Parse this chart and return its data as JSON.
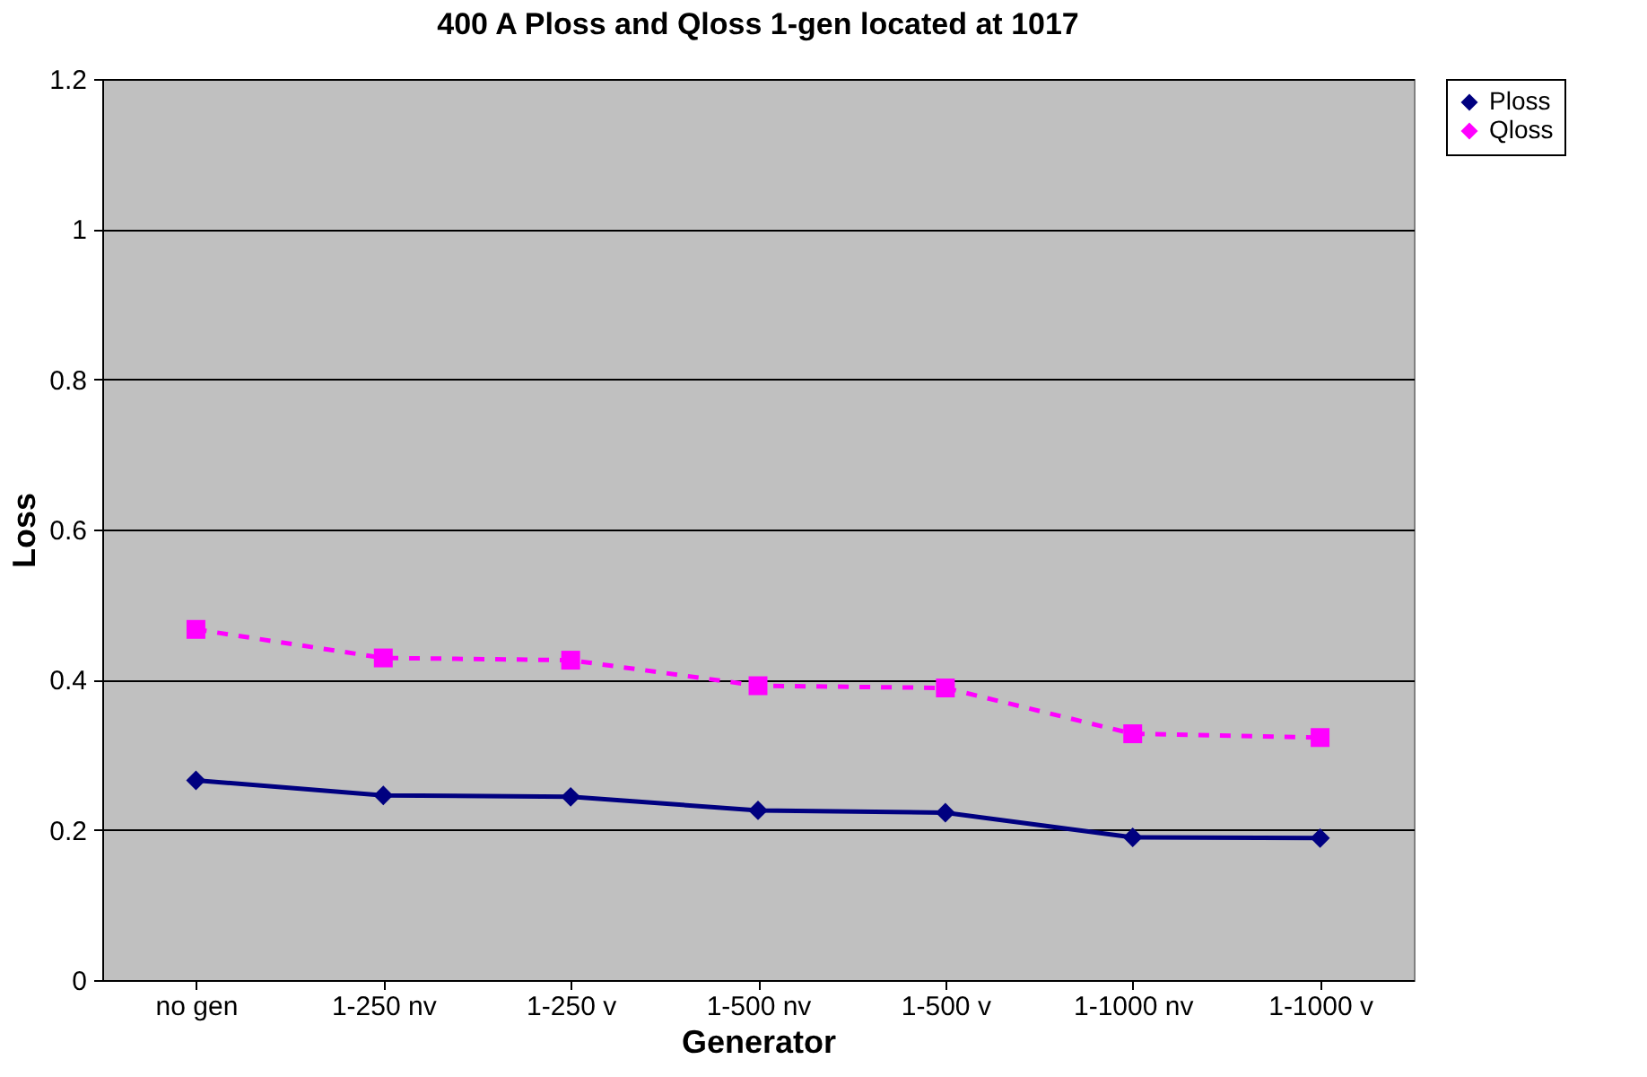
{
  "chart_data": {
    "type": "line",
    "title": "400 A Ploss and Qloss 1-gen located at 1017",
    "xlabel": "Generator",
    "ylabel": "Loss",
    "categories": [
      "no gen",
      "1-250 nv",
      "1-250 v",
      "1-500 nv",
      "1-500 v",
      "1-1000 nv",
      "1-1000 v"
    ],
    "series": [
      {
        "name": "Ploss",
        "color": "#000080",
        "marker": "diamond",
        "line_style": "solid",
        "values": [
          0.266,
          0.246,
          0.244,
          0.226,
          0.223,
          0.19,
          0.189
        ]
      },
      {
        "name": "Qloss",
        "color": "#ff00ff",
        "marker": "square",
        "line_style": "dashed",
        "values": [
          0.467,
          0.429,
          0.426,
          0.392,
          0.389,
          0.328,
          0.323
        ]
      }
    ],
    "ylim": [
      0,
      1.2
    ],
    "yticks": [
      0,
      0.2,
      0.4,
      0.6,
      0.8,
      1,
      1.2
    ],
    "grid": "y",
    "legend": "right"
  }
}
